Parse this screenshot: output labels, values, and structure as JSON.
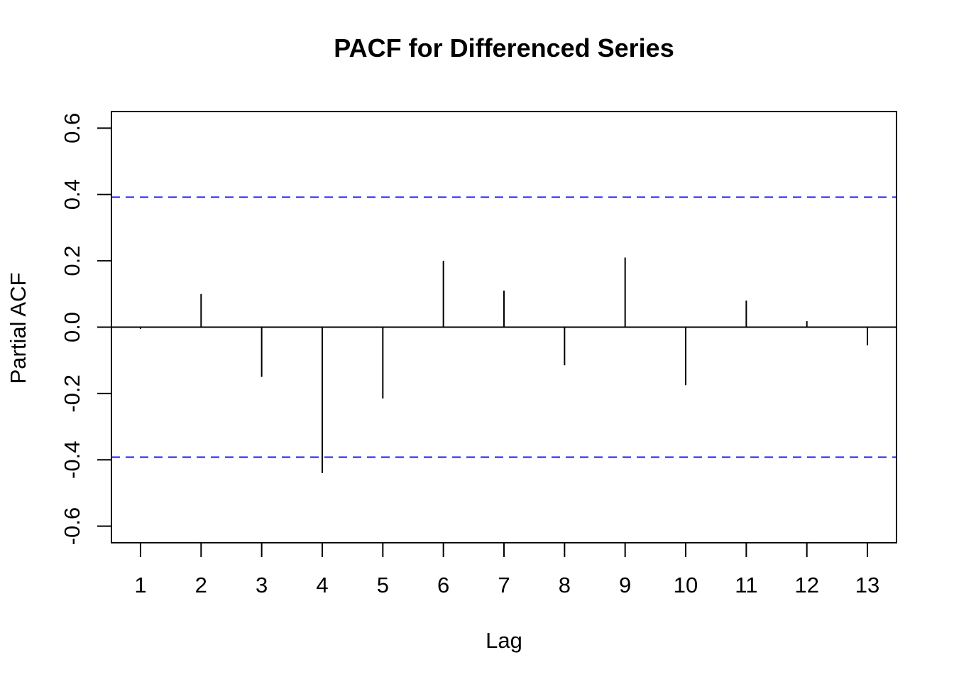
{
  "chart_data": {
    "type": "bar",
    "title": "PACF for Differenced Series",
    "xlabel": "Lag",
    "ylabel": "Partial ACF",
    "x": [
      1,
      2,
      3,
      4,
      5,
      6,
      7,
      8,
      9,
      10,
      11,
      12,
      13
    ],
    "x_tick_labels": [
      "1",
      "2",
      "3",
      "4",
      "5",
      "6",
      "7",
      "8",
      "9",
      "10",
      "11",
      "12",
      "13"
    ],
    "values": [
      -0.005,
      0.1,
      -0.15,
      -0.44,
      -0.215,
      0.2,
      0.11,
      -0.115,
      0.21,
      -0.175,
      0.08,
      0.018,
      -0.055
    ],
    "y_ticks": [
      -0.6,
      -0.4,
      -0.2,
      0.0,
      0.2,
      0.4,
      0.6
    ],
    "y_tick_labels": [
      "-0.6",
      "-0.4",
      "-0.2",
      "0.0",
      "0.2",
      "0.4",
      "0.6"
    ],
    "xlim": [
      0.52,
      13.48
    ],
    "ylim": [
      -0.65,
      0.65
    ],
    "confidence_bounds": [
      0.392,
      -0.392
    ],
    "confidence_color": "#1a1aff",
    "bar_color": "#000000",
    "grid": false
  }
}
